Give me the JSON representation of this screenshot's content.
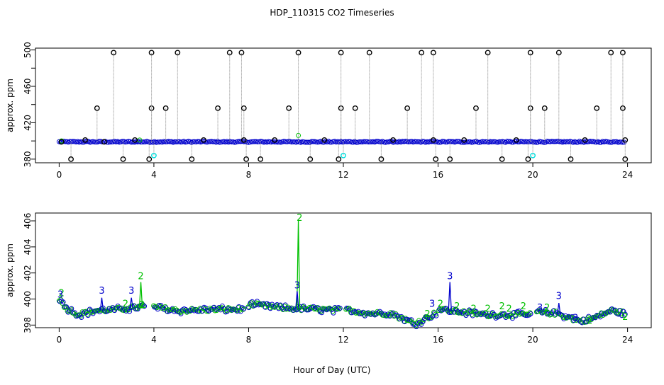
{
  "title": "HDP_110315  CO2 Timeseries",
  "xlabel": "Hour of Day (UTC)",
  "colors": {
    "black": "#000000",
    "green": "#00c000",
    "blue": "#0000cc",
    "cyan": "#00dddd",
    "drop": "#888888"
  },
  "chart_data": [
    {
      "type": "scatter",
      "ylabel": "approx. ppm",
      "xlim": [
        -1,
        25
      ],
      "ylim": [
        376,
        502
      ],
      "xticks": [
        0,
        4,
        8,
        12,
        16,
        20,
        24
      ],
      "xtick_labels": [
        "0",
        "4",
        "8",
        "12",
        "16",
        "20",
        "24"
      ],
      "yticks": [
        380,
        420,
        460,
        500
      ],
      "ytick_labels": [
        "380",
        "420",
        "460",
        "500"
      ],
      "yminor": [
        400,
        440,
        480
      ],
      "baseline_ppm": 399,
      "series": [
        {
          "color": "black",
          "x": [
            0.1,
            0.5,
            1.1,
            1.6,
            1.9,
            2.3,
            2.7,
            3.2,
            3.8,
            3.9,
            3.9,
            4.5,
            5.0,
            5.6,
            6.1,
            6.7,
            7.2,
            7.7,
            7.8,
            7.8,
            7.9,
            8.5,
            9.1,
            9.7,
            10.1,
            10.6,
            11.2,
            11.8,
            11.9,
            11.9,
            12.5,
            13.1,
            13.6,
            14.1,
            14.7,
            15.3,
            15.8,
            15.8,
            15.9,
            16.5,
            17.1,
            17.6,
            18.1,
            18.7,
            19.3,
            19.8,
            19.9,
            19.9,
            20.5,
            21.1,
            21.6,
            22.2,
            22.7,
            23.3,
            23.8,
            23.8,
            23.9,
            23.9
          ],
          "y": [
            399,
            380,
            401,
            436,
            399,
            497,
            380,
            401,
            380,
            436,
            497,
            436,
            497,
            380,
            401,
            436,
            497,
            497,
            436,
            401,
            380,
            380,
            401,
            436,
            497,
            380,
            401,
            380,
            436,
            497,
            436,
            497,
            380,
            401,
            436,
            497,
            497,
            401,
            380,
            380,
            401,
            436,
            497,
            380,
            401,
            380,
            436,
            497,
            436,
            497,
            380,
            401,
            436,
            497,
            497,
            436,
            401,
            380
          ]
        },
        {
          "color": "cyan",
          "x": [
            4.0,
            12.0,
            20.0
          ],
          "y": [
            384,
            384,
            384
          ]
        }
      ]
    },
    {
      "type": "scatter",
      "ylabel": "approx. ppm",
      "xlim": [
        -1,
        25
      ],
      "ylim": [
        397.8,
        406.6
      ],
      "xticks": [
        0,
        4,
        8,
        12,
        16,
        20,
        24
      ],
      "xtick_labels": [
        "0",
        "4",
        "8",
        "12",
        "16",
        "20",
        "24"
      ],
      "yticks": [
        398,
        400,
        402,
        404,
        406
      ],
      "ytick_labels": [
        "398",
        "400",
        "402",
        "404",
        "406"
      ],
      "gaps": [
        [
          3.6,
          3.95
        ],
        [
          7.8,
          7.95
        ],
        [
          11.9,
          12.05
        ],
        [
          15.9,
          16.0
        ],
        [
          19.9,
          20.1
        ]
      ],
      "series": [
        {
          "name": "2",
          "color": "green",
          "labels": [
            {
              "x": 0.1,
              "y": 400.4,
              "text": "2"
            },
            {
              "x": 3.45,
              "y": 401.7,
              "text": "2"
            },
            {
              "x": 2.8,
              "y": 399.6,
              "text": "2"
            },
            {
              "x": 3.5,
              "y": 399.5,
              "text": "2"
            },
            {
              "x": 10.15,
              "y": 406.2,
              "text": "2"
            },
            {
              "x": 15.55,
              "y": 398.8,
              "text": "2"
            },
            {
              "x": 16.1,
              "y": 399.6,
              "text": "2"
            },
            {
              "x": 16.8,
              "y": 399.4,
              "text": "2"
            },
            {
              "x": 17.5,
              "y": 399.2,
              "text": "2"
            },
            {
              "x": 18.1,
              "y": 399.2,
              "text": "2"
            },
            {
              "x": 18.7,
              "y": 399.4,
              "text": "2"
            },
            {
              "x": 19.0,
              "y": 399.2,
              "text": "2"
            },
            {
              "x": 19.6,
              "y": 399.4,
              "text": "2"
            },
            {
              "x": 20.6,
              "y": 399.3,
              "text": "2"
            },
            {
              "x": 22.4,
              "y": 398.3,
              "text": "2"
            },
            {
              "x": 23.9,
              "y": 398.6,
              "text": "2"
            }
          ]
        },
        {
          "name": "3",
          "color": "blue",
          "labels": [
            {
              "x": 0.05,
              "y": 400.3,
              "text": "3"
            },
            {
              "x": 1.8,
              "y": 400.6,
              "text": "3"
            },
            {
              "x": 3.05,
              "y": 400.6,
              "text": "3"
            },
            {
              "x": 10.05,
              "y": 401.0,
              "text": "3"
            },
            {
              "x": 15.75,
              "y": 399.6,
              "text": "3"
            },
            {
              "x": 16.5,
              "y": 401.7,
              "text": "3"
            },
            {
              "x": 20.3,
              "y": 399.3,
              "text": "3"
            },
            {
              "x": 21.1,
              "y": 400.2,
              "text": "3"
            },
            {
              "x": 21.8,
              "y": 398.5,
              "text": "3"
            }
          ]
        }
      ],
      "spikes": [
        {
          "x": 1.8,
          "peak": 400.1,
          "color": "blue"
        },
        {
          "x": 3.05,
          "peak": 400.1,
          "color": "blue"
        },
        {
          "x": 3.45,
          "peak": 401.3,
          "color": "green"
        },
        {
          "x": 10.1,
          "peak": 406.0,
          "color": "green"
        },
        {
          "x": 10.05,
          "peak": 400.6,
          "color": "blue"
        },
        {
          "x": 16.5,
          "peak": 401.3,
          "color": "blue"
        },
        {
          "x": 21.1,
          "peak": 399.7,
          "color": "blue"
        }
      ],
      "trend": [
        {
          "x": 0.0,
          "y": 400.0
        },
        {
          "x": 0.3,
          "y": 399.3
        },
        {
          "x": 0.8,
          "y": 398.8
        },
        {
          "x": 1.5,
          "y": 399.1
        },
        {
          "x": 2.5,
          "y": 399.2
        },
        {
          "x": 3.5,
          "y": 399.4
        },
        {
          "x": 4.0,
          "y": 399.4
        },
        {
          "x": 5.0,
          "y": 399.1
        },
        {
          "x": 6.5,
          "y": 399.2
        },
        {
          "x": 7.8,
          "y": 399.2
        },
        {
          "x": 8.0,
          "y": 399.6
        },
        {
          "x": 9.5,
          "y": 399.3
        },
        {
          "x": 11.0,
          "y": 399.2
        },
        {
          "x": 11.9,
          "y": 399.1
        },
        {
          "x": 12.1,
          "y": 399.2
        },
        {
          "x": 13.0,
          "y": 398.9
        },
        {
          "x": 14.0,
          "y": 398.9
        },
        {
          "x": 14.5,
          "y": 398.5
        },
        {
          "x": 15.0,
          "y": 398.1
        },
        {
          "x": 15.8,
          "y": 398.8
        },
        {
          "x": 16.0,
          "y": 399.2
        },
        {
          "x": 17.0,
          "y": 399.0
        },
        {
          "x": 18.0,
          "y": 398.8
        },
        {
          "x": 19.9,
          "y": 398.8
        },
        {
          "x": 20.1,
          "y": 399.0
        },
        {
          "x": 21.0,
          "y": 398.9
        },
        {
          "x": 22.0,
          "y": 398.3
        },
        {
          "x": 22.5,
          "y": 398.5
        },
        {
          "x": 23.3,
          "y": 399.1
        },
        {
          "x": 23.9,
          "y": 398.9
        }
      ]
    }
  ]
}
